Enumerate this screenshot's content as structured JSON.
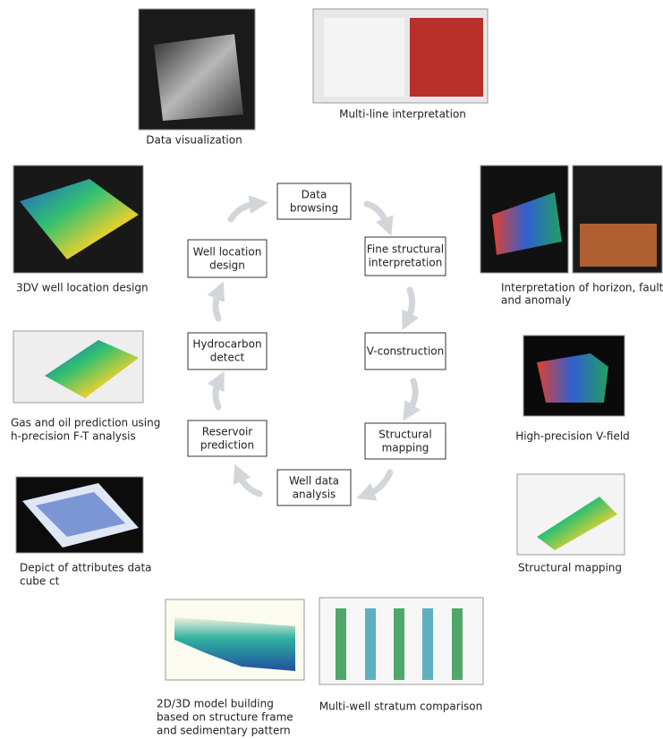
{
  "cycle": [
    {
      "lines": [
        "Data",
        "browsing"
      ]
    },
    {
      "lines": [
        "Fine structural",
        "interpretation"
      ]
    },
    {
      "lines": [
        "V-construction"
      ]
    },
    {
      "lines": [
        "Structural",
        "mapping"
      ]
    },
    {
      "lines": [
        "Well data",
        "analysis"
      ]
    },
    {
      "lines": [
        "Reservoir",
        "prediction"
      ]
    },
    {
      "lines": [
        "Hydrocarbon",
        "detect"
      ]
    },
    {
      "lines": [
        "Well location",
        "design"
      ]
    }
  ],
  "panels": [
    {
      "caption": [
        "Data visualization"
      ]
    },
    {
      "caption": [
        "Multi-line interpretation"
      ]
    },
    {
      "caption": [
        "3DV well location design"
      ]
    },
    {
      "caption": [
        "Interpretation of horizon, fault,",
        "and anomaly"
      ]
    },
    {
      "caption": [
        "High-precision V-field"
      ]
    },
    {
      "caption": [
        "Gas and oil prediction using",
        "h-precision F-T analysis"
      ]
    },
    {
      "caption": [
        "Structural mapping"
      ]
    },
    {
      "caption": [
        "Depict of attributes data",
        "cube ct"
      ]
    },
    {
      "caption": [
        "2D/3D model building",
        "based on structure frame",
        "and sedimentary pattern"
      ]
    },
    {
      "caption": [
        "Multi-well stratum comparison"
      ]
    }
  ]
}
